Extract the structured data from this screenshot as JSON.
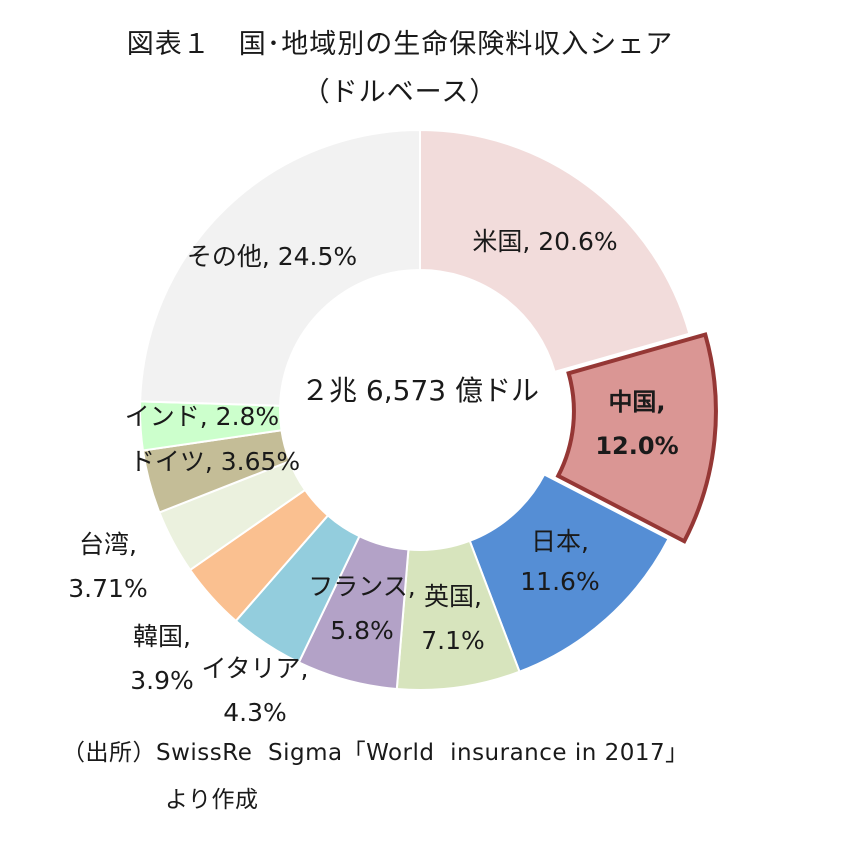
{
  "title_line1": "図表１　国･地域別の生命保険料収入シェア",
  "title_line2": "（ドルベース）",
  "source_line1": "（出所）SwissRe  Sigma「World  insurance in 2017」",
  "source_line2": "より作成",
  "chart_data": {
    "type": "pie",
    "donut": true,
    "center_label": "２兆 6,573 億ドル",
    "highlighted": "中国",
    "slices": [
      {
        "name": "米国",
        "value": 20.6,
        "label": [
          "米国, 20.6%"
        ],
        "color": "#f2dcdb"
      },
      {
        "name": "中国",
        "value": 12.0,
        "label": [
          "中国,",
          "12.0%"
        ],
        "color": "#da9694"
      },
      {
        "name": "日本",
        "value": 11.6,
        "label": [
          "日本,",
          "11.6%"
        ],
        "color": "#558ed5"
      },
      {
        "name": "英国",
        "value": 7.1,
        "label": [
          "英国,",
          "7.1%"
        ],
        "color": "#d7e4bd"
      },
      {
        "name": "フランス",
        "value": 5.8,
        "label": [
          "フランス,",
          "5.8%"
        ],
        "color": "#b3a2c7"
      },
      {
        "name": "イタリア",
        "value": 4.3,
        "label": [
          "イタリア,",
          "4.3%"
        ],
        "color": "#93cddd"
      },
      {
        "name": "韓国",
        "value": 3.9,
        "label": [
          "韓国,",
          "3.9%"
        ],
        "color": "#fac090"
      },
      {
        "name": "台湾",
        "value": 3.71,
        "label": [
          "台湾,",
          "3.71%"
        ],
        "color": "#ebf1de"
      },
      {
        "name": "ドイツ",
        "value": 3.65,
        "label": [
          "ドイツ, 3.65%"
        ],
        "color": "#c4bd97"
      },
      {
        "name": "インド",
        "value": 2.8,
        "label": [
          "インド, 2.8%"
        ],
        "color": "#ccffcc"
      },
      {
        "name": "その他",
        "value": 24.5,
        "label": [
          "その他, 24.5%"
        ],
        "color": "#f2f2f2"
      }
    ]
  }
}
